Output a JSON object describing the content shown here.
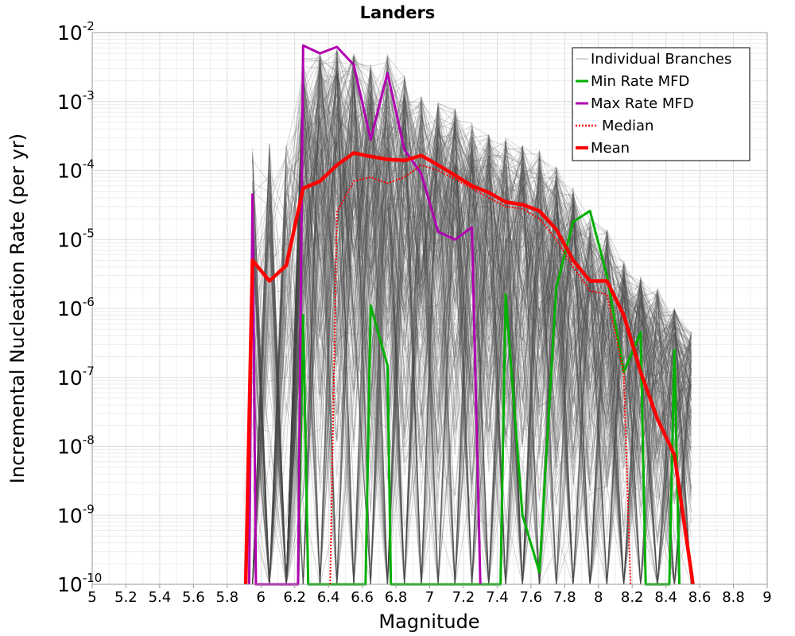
{
  "chart_data": {
    "type": "line",
    "title": "Landers",
    "xlabel": "Magnitude",
    "ylabel": "Incremental Nucleation Rate (per yr)",
    "yscale": "log",
    "xlim": [
      5,
      9
    ],
    "ylim": [
      1e-10,
      0.01
    ],
    "x_ticks": [
      "5",
      "5.2",
      "5.4",
      "5.6",
      "5.8",
      "6",
      "6.2",
      "6.4",
      "6.6",
      "6.8",
      "7",
      "7.2",
      "7.4",
      "7.6",
      "7.8",
      "8",
      "8.2",
      "8.4",
      "8.6",
      "8.8",
      "9"
    ],
    "y_ticks": [
      {
        "value": 1e-10,
        "base": "10",
        "exp": "-10"
      },
      {
        "value": 1e-09,
        "base": "10",
        "exp": "-9"
      },
      {
        "value": 1e-08,
        "base": "10",
        "exp": "-8"
      },
      {
        "value": 1e-07,
        "base": "10",
        "exp": "-7"
      },
      {
        "value": 1e-06,
        "base": "10",
        "exp": "-6"
      },
      {
        "value": 1e-05,
        "base": "10",
        "exp": "-5"
      },
      {
        "value": 0.0001,
        "base": "10",
        "exp": "-4"
      },
      {
        "value": 0.001,
        "base": "10",
        "exp": "-3"
      },
      {
        "value": 0.01,
        "base": "10",
        "exp": "-2"
      }
    ],
    "legend_position": "top-right",
    "branch_bins": [
      5.95,
      6.05,
      6.15,
      6.25,
      6.35,
      6.45,
      6.55,
      6.65,
      6.75,
      6.85,
      6.95,
      7.05,
      7.15,
      7.25,
      7.35,
      7.45,
      7.55,
      7.65,
      7.75,
      7.85,
      7.95,
      8.05,
      8.15,
      8.25,
      8.35,
      8.45,
      8.55
    ],
    "branch_envelope": {
      "upper": [
        0.00025,
        0.00025,
        0.00025,
        0.0045,
        0.005,
        0.006,
        0.005,
        0.004,
        0.005,
        0.0025,
        0.0012,
        0.001,
        0.0008,
        0.0005,
        0.00035,
        0.0003,
        0.00025,
        0.0002,
        0.00012,
        6e-05,
        2e-05,
        1.5e-05,
        5e-06,
        3e-06,
        2e-06,
        1e-06,
        5e-07
      ],
      "lower": [
        1e-10,
        1e-10,
        1e-10,
        1e-10,
        1e-10,
        1e-10,
        1e-10,
        1e-10,
        1e-10,
        1e-10,
        1e-10,
        1e-10,
        1e-10,
        1e-10,
        1e-10,
        1e-10,
        1e-10,
        1e-10,
        1e-10,
        1e-10,
        1e-10,
        1e-10,
        1e-10,
        1e-10,
        1e-10,
        1e-10,
        1e-10
      ]
    },
    "series": [
      {
        "name": "Min Rate MFD",
        "color": "#00b000",
        "style": "solid",
        "points": [
          [
            6.22,
            1e-10
          ],
          [
            6.25,
            8e-07
          ],
          [
            6.28,
            1e-10
          ],
          [
            6.62,
            1e-10
          ],
          [
            6.65,
            1.1e-06
          ],
          [
            6.75,
            1.5e-07
          ],
          [
            6.77,
            1e-10
          ],
          [
            7.42,
            1e-10
          ],
          [
            7.45,
            1.6e-06
          ],
          [
            7.55,
            1e-09
          ],
          [
            7.65,
            1.5e-10
          ],
          [
            7.75,
            2e-06
          ],
          [
            7.85,
            1.8e-05
          ],
          [
            7.95,
            2.6e-05
          ],
          [
            8.05,
            3e-06
          ],
          [
            8.15,
            1.2e-07
          ],
          [
            8.25,
            4.5e-07
          ],
          [
            8.28,
            1e-10
          ],
          [
            8.42,
            1e-10
          ],
          [
            8.45,
            2.5e-07
          ],
          [
            8.48,
            1e-10
          ]
        ]
      },
      {
        "name": "Max Rate MFD",
        "color": "#b000b0",
        "style": "solid",
        "points": [
          [
            5.93,
            1e-10
          ],
          [
            5.95,
            4.5e-05
          ],
          [
            5.97,
            1e-10
          ],
          [
            6.22,
            1e-10
          ],
          [
            6.25,
            0.0065
          ],
          [
            6.35,
            0.005
          ],
          [
            6.45,
            0.0062
          ],
          [
            6.55,
            0.0034
          ],
          [
            6.65,
            0.00028
          ],
          [
            6.75,
            0.0026
          ],
          [
            6.85,
            0.0002
          ],
          [
            6.95,
            9e-05
          ],
          [
            7.05,
            1.3e-05
          ],
          [
            7.15,
            1e-05
          ],
          [
            7.25,
            1.5e-05
          ],
          [
            7.3,
            1e-10
          ]
        ]
      },
      {
        "name": "Median",
        "color": "#ff0000",
        "style": "dotted",
        "points": [
          [
            6.41,
            1e-10
          ],
          [
            6.45,
            2.5e-05
          ],
          [
            6.55,
            7e-05
          ],
          [
            6.65,
            8e-05
          ],
          [
            6.75,
            6.5e-05
          ],
          [
            6.85,
            8e-05
          ],
          [
            6.95,
            0.00012
          ],
          [
            7.05,
            0.0001
          ],
          [
            7.15,
            7.5e-05
          ],
          [
            7.25,
            5.5e-05
          ],
          [
            7.35,
            4e-05
          ],
          [
            7.45,
            3e-05
          ],
          [
            7.55,
            2.8e-05
          ],
          [
            7.65,
            2e-05
          ],
          [
            7.75,
            1e-05
          ],
          [
            7.85,
            4e-06
          ],
          [
            7.95,
            1.8e-06
          ],
          [
            8.05,
            1.6e-06
          ],
          [
            8.15,
            1.2e-07
          ],
          [
            8.19,
            1e-10
          ]
        ]
      },
      {
        "name": "Mean",
        "color": "#ff0000",
        "style": "solid",
        "points": [
          [
            5.91,
            1e-10
          ],
          [
            5.95,
            5e-06
          ],
          [
            6.05,
            2.5e-06
          ],
          [
            6.15,
            4.2e-06
          ],
          [
            6.25,
            5.5e-05
          ],
          [
            6.35,
            7e-05
          ],
          [
            6.45,
            0.00012
          ],
          [
            6.55,
            0.00018
          ],
          [
            6.65,
            0.00016
          ],
          [
            6.75,
            0.000145
          ],
          [
            6.85,
            0.00014
          ],
          [
            6.95,
            0.000165
          ],
          [
            7.05,
            0.00012
          ],
          [
            7.15,
            8.5e-05
          ],
          [
            7.25,
            6e-05
          ],
          [
            7.35,
            4.8e-05
          ],
          [
            7.45,
            3.5e-05
          ],
          [
            7.55,
            3.2e-05
          ],
          [
            7.65,
            2.6e-05
          ],
          [
            7.75,
            1.4e-05
          ],
          [
            7.85,
            5e-06
          ],
          [
            7.95,
            2.5e-06
          ],
          [
            8.05,
            2.5e-06
          ],
          [
            8.15,
            8e-07
          ],
          [
            8.25,
            1.2e-07
          ],
          [
            8.35,
            2.5e-08
          ],
          [
            8.45,
            7.5e-09
          ],
          [
            8.55,
            1.5e-10
          ],
          [
            8.56,
            1e-10
          ]
        ]
      }
    ],
    "legend": [
      {
        "label": "Individual Branches",
        "color": "#aaaaaa",
        "style": "thin"
      },
      {
        "label": "Min Rate MFD",
        "color": "#00b000",
        "style": "solid"
      },
      {
        "label": "Max Rate MFD",
        "color": "#b000b0",
        "style": "solid"
      },
      {
        "label": "Median",
        "color": "#ff0000",
        "style": "dotted"
      },
      {
        "label": "Mean",
        "color": "#ff0000",
        "style": "solid"
      }
    ]
  }
}
